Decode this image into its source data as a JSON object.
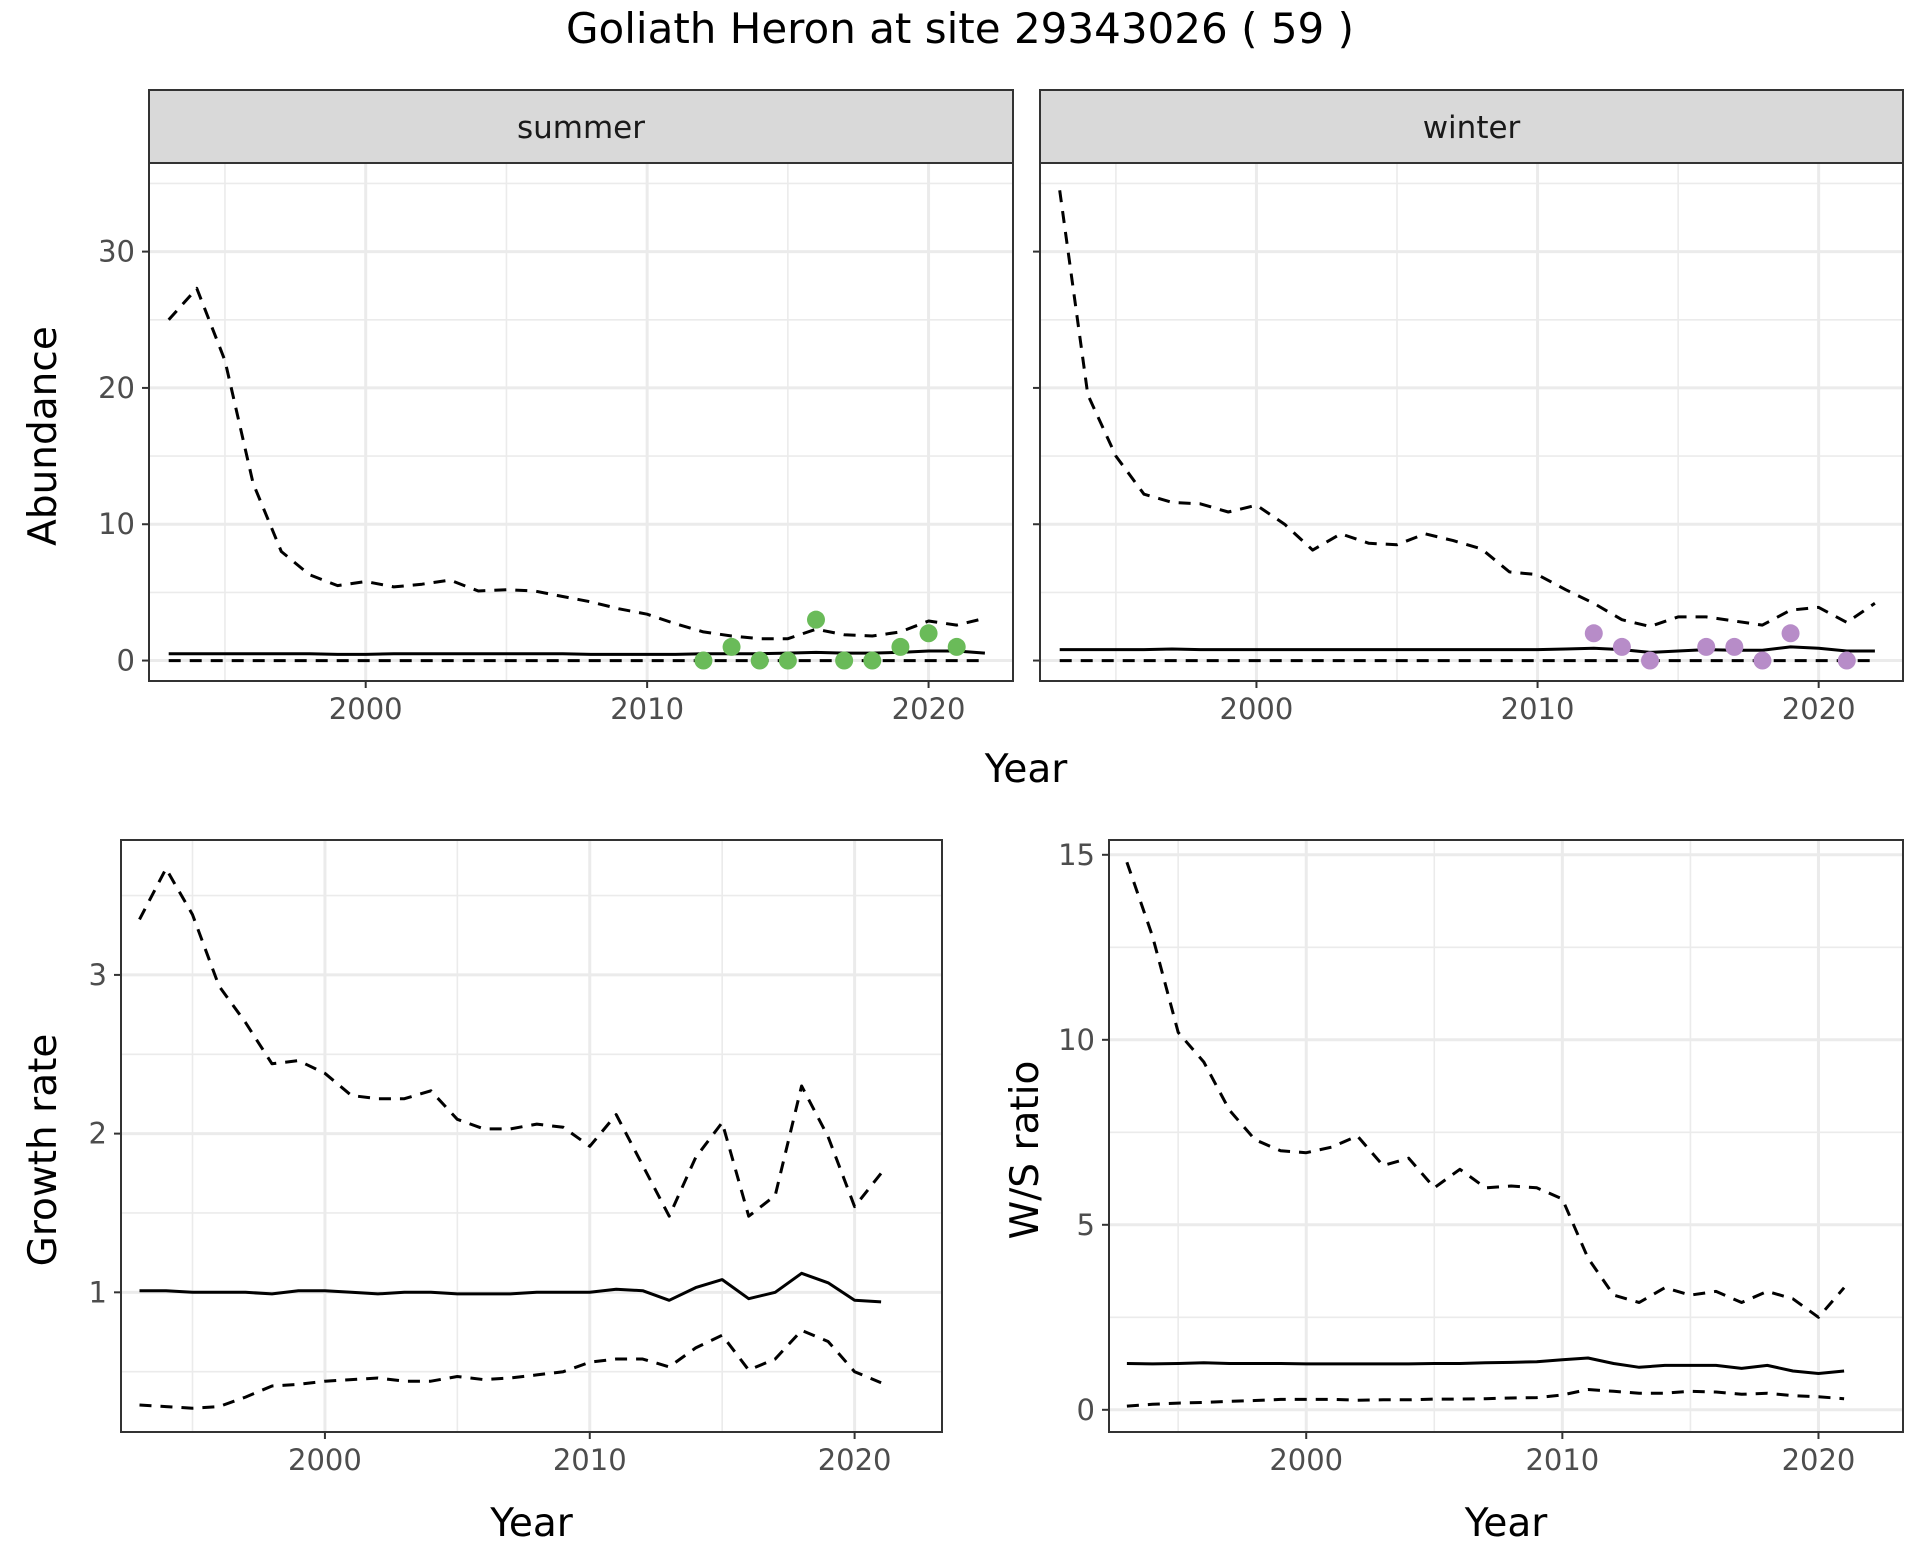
{
  "title": "Goliath Heron at site 29343026 ( 59 )",
  "colors": {
    "summer_points": "#6ABB59",
    "winter_points": "#B78CC8",
    "strip_fill": "#D9D9D9",
    "grid": "#EBEBEB",
    "line": "#000000"
  },
  "chart_data": [
    {
      "id": "abundance",
      "type": "line",
      "ylabel": "Abundance",
      "xlabel": "Year",
      "xlim": [
        1992.3,
        2023.0
      ],
      "ylim": [
        -1.5,
        36.5
      ],
      "xticks": [
        2000,
        2010,
        2020
      ],
      "yticks": [
        0,
        10,
        20,
        30
      ],
      "grid": true,
      "facets": [
        {
          "strip": "summer",
          "series": [
            {
              "style": "solid",
              "x": [
                1993,
                1994,
                1995,
                1996,
                1997,
                1998,
                1999,
                2000,
                2001,
                2002,
                2003,
                2004,
                2005,
                2006,
                2007,
                2008,
                2009,
                2010,
                2011,
                2012,
                2013,
                2014,
                2015,
                2016,
                2017,
                2018,
                2019,
                2020,
                2021,
                2022
              ],
              "y": [
                0.5,
                0.5,
                0.5,
                0.5,
                0.5,
                0.5,
                0.45,
                0.45,
                0.5,
                0.5,
                0.5,
                0.5,
                0.5,
                0.5,
                0.5,
                0.45,
                0.45,
                0.45,
                0.45,
                0.5,
                0.5,
                0.5,
                0.55,
                0.6,
                0.55,
                0.55,
                0.6,
                0.7,
                0.7,
                0.55
              ]
            },
            {
              "style": "dashed",
              "x": [
                1993,
                1994,
                1995,
                1996,
                1997,
                1998,
                1999,
                2000,
                2001,
                2002,
                2003,
                2004,
                2005,
                2006,
                2007,
                2008,
                2009,
                2010,
                2011,
                2012,
                2013,
                2014,
                2015,
                2016,
                2017,
                2018,
                2019,
                2020,
                2021,
                2022
              ],
              "y": [
                25,
                27.3,
                22,
                13,
                8,
                6.3,
                5.5,
                5.8,
                5.4,
                5.6,
                5.9,
                5.1,
                5.2,
                5.1,
                4.7,
                4.3,
                3.8,
                3.4,
                2.7,
                2.1,
                1.8,
                1.6,
                1.6,
                2.3,
                1.9,
                1.8,
                2.1,
                2.9,
                2.6,
                3.1
              ]
            },
            {
              "style": "dashed",
              "x": [
                1993,
                2022
              ],
              "y": [
                0,
                0
              ]
            }
          ],
          "points": {
            "x": [
              2012,
              2013,
              2014,
              2015,
              2016,
              2017,
              2018,
              2019,
              2020,
              2021
            ],
            "y": [
              0,
              1,
              0,
              0,
              3,
              0,
              0,
              1,
              2,
              1
            ]
          }
        },
        {
          "strip": "winter",
          "series": [
            {
              "style": "solid",
              "x": [
                1993,
                1994,
                1995,
                1996,
                1997,
                1998,
                1999,
                2000,
                2001,
                2002,
                2003,
                2004,
                2005,
                2006,
                2007,
                2008,
                2009,
                2010,
                2011,
                2012,
                2013,
                2014,
                2015,
                2016,
                2017,
                2018,
                2019,
                2020,
                2021,
                2022
              ],
              "y": [
                0.8,
                0.8,
                0.8,
                0.8,
                0.85,
                0.8,
                0.8,
                0.8,
                0.8,
                0.8,
                0.8,
                0.8,
                0.8,
                0.8,
                0.8,
                0.8,
                0.8,
                0.8,
                0.85,
                0.9,
                0.8,
                0.6,
                0.7,
                0.8,
                0.75,
                0.75,
                1.0,
                0.9,
                0.7,
                0.7
              ]
            },
            {
              "style": "dashed",
              "x": [
                1993,
                1994,
                1995,
                1996,
                1997,
                1998,
                1999,
                2000,
                2001,
                2002,
                2003,
                2004,
                2005,
                2006,
                2007,
                2008,
                2009,
                2010,
                2011,
                2012,
                2013,
                2014,
                2015,
                2016,
                2017,
                2018,
                2019,
                2020,
                2021,
                2022
              ],
              "y": [
                34.5,
                19.5,
                15,
                12.2,
                11.6,
                11.5,
                10.9,
                11.4,
                10,
                8.1,
                9.3,
                8.6,
                8.5,
                9.3,
                8.8,
                8.2,
                6.5,
                6.3,
                5.2,
                4.2,
                3,
                2.5,
                3.2,
                3.2,
                2.9,
                2.6,
                3.7,
                3.9,
                2.8,
                4.2
              ]
            },
            {
              "style": "dashed",
              "x": [
                1993,
                2022
              ],
              "y": [
                0,
                0
              ]
            }
          ],
          "points": {
            "x": [
              2012,
              2013,
              2014,
              2016,
              2017,
              2018,
              2019,
              2021
            ],
            "y": [
              2,
              1,
              0,
              1,
              1,
              0,
              2,
              0
            ]
          }
        }
      ]
    },
    {
      "id": "growth",
      "type": "line",
      "ylabel": "Growth rate",
      "xlabel": "Year",
      "xlim": [
        1992.3,
        2023.3
      ],
      "ylim": [
        0.12,
        3.85
      ],
      "xticks": [
        2000,
        2010,
        2020
      ],
      "yticks": [
        1,
        2,
        3
      ],
      "grid": true,
      "series": [
        {
          "style": "solid",
          "x": [
            1993,
            1994,
            1995,
            1996,
            1997,
            1998,
            1999,
            2000,
            2001,
            2002,
            2003,
            2004,
            2005,
            2006,
            2007,
            2008,
            2009,
            2010,
            2011,
            2012,
            2013,
            2014,
            2015,
            2016,
            2017,
            2018,
            2019,
            2020,
            2021
          ],
          "y": [
            1.01,
            1.01,
            1.0,
            1.0,
            1.0,
            0.99,
            1.01,
            1.01,
            1.0,
            0.99,
            1.0,
            1.0,
            0.99,
            0.99,
            0.99,
            1.0,
            1.0,
            1.0,
            1.02,
            1.01,
            0.95,
            1.03,
            1.08,
            0.96,
            1.0,
            1.12,
            1.06,
            0.95,
            0.94
          ]
        },
        {
          "style": "dashed",
          "x": [
            1993,
            1994,
            1995,
            1996,
            1997,
            1998,
            1999,
            2000,
            2001,
            2002,
            2003,
            2004,
            2005,
            2006,
            2007,
            2008,
            2009,
            2010,
            2011,
            2012,
            2013,
            2014,
            2015,
            2016,
            2017,
            2018,
            2019,
            2020,
            2021
          ],
          "y": [
            3.35,
            3.67,
            3.38,
            2.93,
            2.7,
            2.44,
            2.46,
            2.38,
            2.24,
            2.22,
            2.22,
            2.27,
            2.09,
            2.03,
            2.03,
            2.06,
            2.04,
            1.92,
            2.12,
            1.8,
            1.48,
            1.85,
            2.07,
            1.48,
            1.61,
            2.3,
            1.98,
            1.54,
            1.75
          ]
        },
        {
          "style": "dashed",
          "x": [
            1993,
            1994,
            1995,
            1996,
            1997,
            1998,
            1999,
            2000,
            2001,
            2002,
            2003,
            2004,
            2005,
            2006,
            2007,
            2008,
            2009,
            2010,
            2011,
            2012,
            2013,
            2014,
            2015,
            2016,
            2017,
            2018,
            2019,
            2020,
            2021
          ],
          "y": [
            0.29,
            0.28,
            0.27,
            0.28,
            0.34,
            0.41,
            0.42,
            0.44,
            0.45,
            0.46,
            0.44,
            0.44,
            0.47,
            0.45,
            0.46,
            0.48,
            0.5,
            0.56,
            0.58,
            0.58,
            0.53,
            0.65,
            0.73,
            0.51,
            0.58,
            0.76,
            0.69,
            0.5,
            0.43
          ]
        }
      ]
    },
    {
      "id": "ratio",
      "type": "line",
      "ylabel": "W/S ratio",
      "xlabel": "Year",
      "xlim": [
        1992.3,
        2023.3
      ],
      "ylim": [
        -0.6,
        15.4
      ],
      "xticks": [
        2000,
        2010,
        2020
      ],
      "yticks": [
        0,
        5,
        10,
        15
      ],
      "grid": true,
      "series": [
        {
          "style": "solid",
          "x": [
            1993,
            1994,
            1995,
            1996,
            1997,
            1998,
            1999,
            2000,
            2001,
            2002,
            2003,
            2004,
            2005,
            2006,
            2007,
            2008,
            2009,
            2010,
            2011,
            2012,
            2013,
            2014,
            2015,
            2016,
            2017,
            2018,
            2019,
            2020,
            2021
          ],
          "y": [
            1.25,
            1.24,
            1.25,
            1.27,
            1.25,
            1.25,
            1.25,
            1.24,
            1.24,
            1.24,
            1.24,
            1.24,
            1.25,
            1.25,
            1.27,
            1.28,
            1.3,
            1.35,
            1.4,
            1.25,
            1.15,
            1.2,
            1.2,
            1.2,
            1.12,
            1.2,
            1.05,
            0.98,
            1.05
          ]
        },
        {
          "style": "dashed",
          "x": [
            1993,
            1994,
            1995,
            1996,
            1997,
            1998,
            1999,
            2000,
            2001,
            2002,
            2003,
            2004,
            2005,
            2006,
            2007,
            2008,
            2009,
            2010,
            2011,
            2012,
            2013,
            2014,
            2015,
            2016,
            2017,
            2018,
            2019,
            2020,
            2021
          ],
          "y": [
            14.8,
            12.8,
            10.2,
            9.4,
            8.1,
            7.3,
            7,
            6.95,
            7.1,
            7.4,
            6.6,
            6.8,
            6,
            6.5,
            6,
            6.05,
            6,
            5.7,
            4.1,
            3.1,
            2.9,
            3.3,
            3.1,
            3.2,
            2.9,
            3.2,
            3,
            2.5,
            3.3
          ]
        },
        {
          "style": "dashed",
          "x": [
            1993,
            1994,
            1995,
            1996,
            1997,
            1998,
            1999,
            2000,
            2001,
            2002,
            2003,
            2004,
            2005,
            2006,
            2007,
            2008,
            2009,
            2010,
            2011,
            2012,
            2013,
            2014,
            2015,
            2016,
            2017,
            2018,
            2019,
            2020,
            2021
          ],
          "y": [
            0.1,
            0.15,
            0.18,
            0.2,
            0.23,
            0.25,
            0.28,
            0.28,
            0.28,
            0.26,
            0.27,
            0.27,
            0.29,
            0.29,
            0.3,
            0.32,
            0.33,
            0.4,
            0.55,
            0.5,
            0.45,
            0.45,
            0.5,
            0.48,
            0.42,
            0.45,
            0.38,
            0.35,
            0.3
          ]
        }
      ]
    }
  ]
}
